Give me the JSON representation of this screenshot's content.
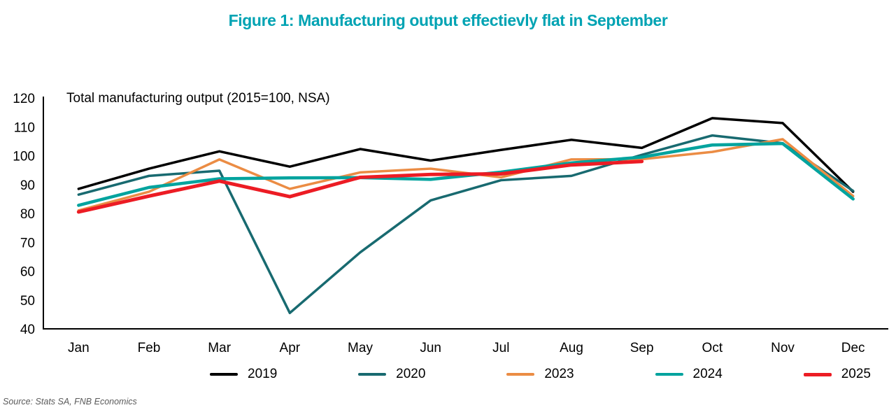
{
  "title": "Figure 1: Manufacturing output effectievly flat in September",
  "subtitle": "Total manufacturing output (2015=100, NSA)",
  "source": "Source: Stats SA, FNB Economics",
  "colors": {
    "title_accent": "#00A3B3",
    "axis": "#000000",
    "source_text": "#5a5a5a"
  },
  "chart_data": {
    "type": "line",
    "title": "Figure 1: Manufacturing output effectievly flat in September",
    "annotation": "Total manufacturing output (2015=100, NSA)",
    "categories": [
      "Jan",
      "Feb",
      "Mar",
      "Apr",
      "May",
      "Jun",
      "Jul",
      "Aug",
      "Sep",
      "Oct",
      "Nov",
      "Dec"
    ],
    "ylim": [
      40,
      120
    ],
    "ytick_step": 10,
    "grid": false,
    "legend_position": "bottom",
    "series": [
      {
        "name": "2019",
        "color": "#000000",
        "width": 3.5,
        "values": [
          88.5,
          95.5,
          101.5,
          96.2,
          102.3,
          98.3,
          102.0,
          105.5,
          102.7,
          113.0,
          111.3,
          87.5
        ]
      },
      {
        "name": "2020",
        "color": "#186A70",
        "width": 3.5,
        "values": [
          86.5,
          93.0,
          94.8,
          45.5,
          66.5,
          84.5,
          91.5,
          93.0,
          100.3,
          107.0,
          104.3,
          87.8
        ]
      },
      {
        "name": "2023",
        "color": "#EB8C44",
        "width": 3.5,
        "values": [
          81.0,
          87.5,
          98.7,
          88.5,
          94.2,
          95.5,
          92.5,
          98.7,
          98.8,
          101.3,
          105.7,
          86.0
        ]
      },
      {
        "name": "2024",
        "color": "#00A39E",
        "width": 4.5,
        "values": [
          82.8,
          89.0,
          92.0,
          92.3,
          92.4,
          91.8,
          94.3,
          97.5,
          99.5,
          103.7,
          104.2,
          85.0
        ]
      },
      {
        "name": "2025",
        "color": "#EC1C24",
        "width": 5,
        "values": [
          80.5,
          86.0,
          91.2,
          85.8,
          92.5,
          93.5,
          93.7,
          96.8,
          98.0
        ]
      }
    ]
  }
}
